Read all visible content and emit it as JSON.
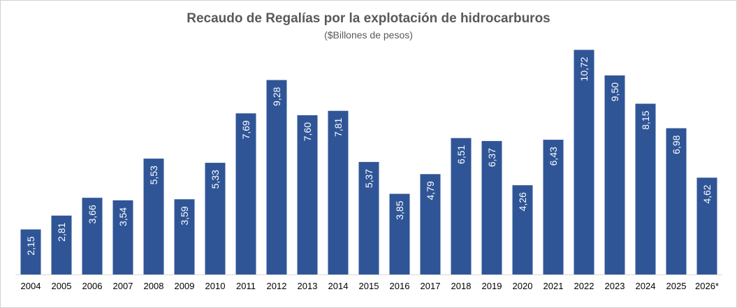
{
  "chart_data": {
    "type": "bar",
    "title": "Recaudo de Regalías por la explotación de hidrocarburos",
    "subtitle": "($Billones de pesos)",
    "xlabel": "",
    "ylabel": "",
    "categories": [
      "2004",
      "2005",
      "2006",
      "2007",
      "2008",
      "2009",
      "2010",
      "2011",
      "2012",
      "2013",
      "2014",
      "2015",
      "2016",
      "2017",
      "2018",
      "2019",
      "2020",
      "2021",
      "2022",
      "2023",
      "2024",
      "2025",
      "2026*"
    ],
    "values": [
      2.15,
      2.81,
      3.66,
      3.54,
      5.53,
      3.59,
      5.33,
      7.69,
      9.28,
      7.6,
      7.81,
      5.37,
      3.85,
      4.79,
      6.51,
      6.37,
      4.26,
      6.43,
      10.72,
      9.5,
      8.15,
      6.98,
      4.62
    ],
    "value_labels": [
      "2,15",
      "2,81",
      "3,66",
      "3,54",
      "5,53",
      "3,59",
      "5,33",
      "7,69",
      "9,28",
      "7,60",
      "7,81",
      "5,37",
      "3,85",
      "4,79",
      "6,51",
      "6,37",
      "4,26",
      "6,43",
      "10,72",
      "9,50",
      "8,15",
      "6,98",
      "4,62"
    ],
    "ylim": [
      0,
      11
    ],
    "grid": false,
    "legend": "none",
    "bar_color": "#2F5597",
    "value_label_orientation": "vertical"
  }
}
